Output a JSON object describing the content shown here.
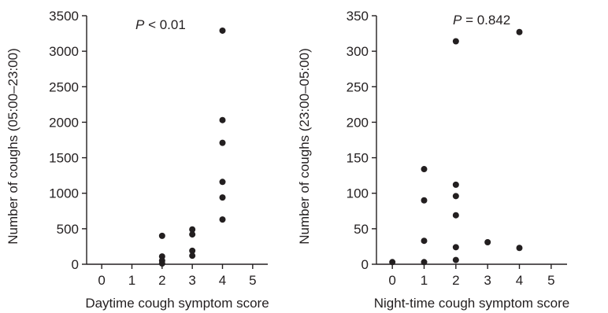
{
  "chart_data": [
    {
      "type": "scatter",
      "xlabel": "Daytime cough symptom score",
      "ylabel": "Number of coughs (05:00–23:00)",
      "xticks": [
        "0",
        "1",
        "2",
        "3",
        "4",
        "5"
      ],
      "yticks": [
        "0",
        "500",
        "1000",
        "1500",
        "2000",
        "2500",
        "3000",
        "3500"
      ],
      "xlim": [
        -0.5,
        5.5
      ],
      "ylim": [
        0,
        3500
      ],
      "annotation": {
        "italic": "P",
        "rest": " < 0.01"
      },
      "points": [
        {
          "x": 2,
          "y": 400
        },
        {
          "x": 2,
          "y": 110
        },
        {
          "x": 2,
          "y": 50
        },
        {
          "x": 2,
          "y": 10
        },
        {
          "x": 3,
          "y": 490
        },
        {
          "x": 3,
          "y": 420
        },
        {
          "x": 3,
          "y": 190
        },
        {
          "x": 3,
          "y": 120
        },
        {
          "x": 4,
          "y": 3290
        },
        {
          "x": 4,
          "y": 2030
        },
        {
          "x": 4,
          "y": 1710
        },
        {
          "x": 4,
          "y": 1160
        },
        {
          "x": 4,
          "y": 940
        },
        {
          "x": 4,
          "y": 630
        }
      ]
    },
    {
      "type": "scatter",
      "xlabel": "Night-time cough symptom score",
      "ylabel": "Number of coughs (23:00–05:00)",
      "xticks": [
        "0",
        "1",
        "2",
        "3",
        "4",
        "5"
      ],
      "yticks": [
        "0",
        "50",
        "100",
        "150",
        "200",
        "250",
        "300",
        "350"
      ],
      "xlim": [
        -0.5,
        5.5
      ],
      "ylim": [
        0,
        350
      ],
      "annotation": {
        "italic": "P",
        "rest": " = 0.842"
      },
      "points": [
        {
          "x": 0,
          "y": 3
        },
        {
          "x": 1,
          "y": 134
        },
        {
          "x": 1,
          "y": 90
        },
        {
          "x": 1,
          "y": 33
        },
        {
          "x": 1,
          "y": 3
        },
        {
          "x": 2,
          "y": 314
        },
        {
          "x": 2,
          "y": 112
        },
        {
          "x": 2,
          "y": 96
        },
        {
          "x": 2,
          "y": 69
        },
        {
          "x": 2,
          "y": 24
        },
        {
          "x": 2,
          "y": 6
        },
        {
          "x": 3,
          "y": 31
        },
        {
          "x": 4,
          "y": 327
        },
        {
          "x": 4,
          "y": 23
        }
      ]
    }
  ]
}
